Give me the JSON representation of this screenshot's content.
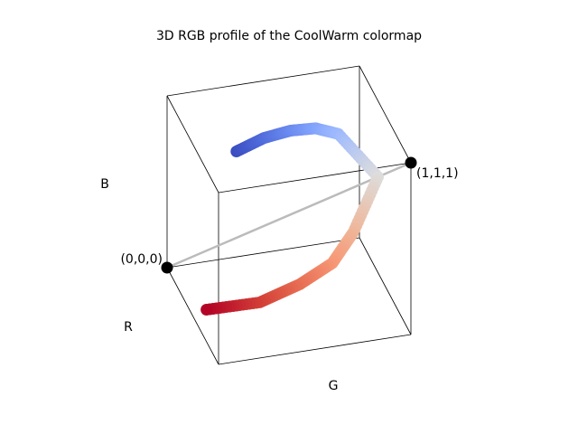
{
  "chart_data": {
    "type": "line",
    "projection": "3d",
    "title": "3D RGB profile of the CoolWarm colormap",
    "axis_labels": {
      "r": "R",
      "g": "G",
      "b": "B"
    },
    "axis_range": {
      "r": [
        0,
        1
      ],
      "g": [
        0,
        1
      ],
      "b": [
        0,
        1
      ]
    },
    "grid": false,
    "box": true,
    "reference_points": [
      {
        "label": "(0,0,0)",
        "rgb": [
          0,
          0,
          0
        ]
      },
      {
        "label": "(1,1,1)",
        "rgb": [
          1,
          1,
          1
        ]
      }
    ],
    "diagonal_color": "#bbbbbb",
    "series": [
      {
        "colormap": "coolwarm",
        "points": [
          {
            "t": 0.0,
            "rgb": [
              0.23,
              0.299,
              0.754
            ]
          },
          {
            "t": 0.1,
            "rgb": [
              0.313,
              0.42,
              0.858
            ]
          },
          {
            "t": 0.2,
            "rgb": [
              0.407,
              0.533,
              0.934
            ]
          },
          {
            "t": 0.3,
            "rgb": [
              0.507,
              0.636,
              0.986
            ]
          },
          {
            "t": 0.4,
            "rgb": [
              0.614,
              0.726,
              0.998
            ]
          },
          {
            "t": 0.5,
            "rgb": [
              0.865,
              0.865,
              0.865
            ]
          },
          {
            "t": 0.6,
            "rgb": [
              0.935,
              0.718,
              0.607
            ]
          },
          {
            "t": 0.7,
            "rgb": [
              0.968,
              0.6,
              0.467
            ]
          },
          {
            "t": 0.8,
            "rgb": [
              0.913,
              0.446,
              0.34
            ]
          },
          {
            "t": 0.9,
            "rgb": [
              0.83,
              0.26,
              0.22
            ]
          },
          {
            "t": 1.0,
            "rgb": [
              0.706,
              0.016,
              0.15
            ]
          }
        ]
      }
    ]
  }
}
